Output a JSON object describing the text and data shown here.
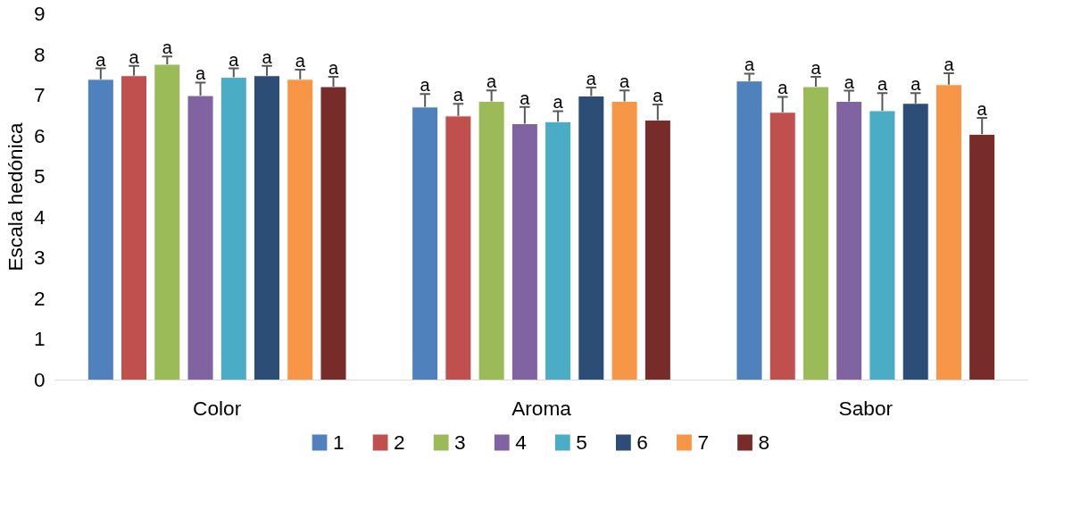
{
  "chart_data": {
    "type": "bar",
    "ylabel": "Escala hedónica",
    "categories": [
      "Color",
      "Aroma",
      "Sabor"
    ],
    "ylim": [
      0,
      9
    ],
    "yticks": [
      0,
      1,
      2,
      3,
      4,
      5,
      6,
      7,
      8,
      9
    ],
    "grid": false,
    "legend": "bottom",
    "series": [
      {
        "name": "1",
        "color": "#4f81bd",
        "values": [
          7.39,
          6.71,
          7.35
        ],
        "errors": [
          [
            7.39,
            7.66
          ],
          [
            6.71,
            7.03
          ],
          [
            7.35,
            7.53
          ]
        ],
        "value_labels": [
          "a",
          "a",
          "a"
        ]
      },
      {
        "name": "2",
        "color": "#c0504d",
        "values": [
          7.48,
          6.49,
          6.58
        ],
        "errors": [
          [
            7.48,
            7.72
          ],
          [
            6.49,
            6.79
          ],
          [
            6.58,
            6.96
          ]
        ],
        "value_labels": [
          "a",
          "a",
          "a"
        ]
      },
      {
        "name": "3",
        "color": "#9bbb59",
        "values": [
          7.76,
          6.85,
          7.21
        ],
        "errors": [
          [
            7.76,
            7.95
          ],
          [
            6.85,
            7.12
          ],
          [
            7.21,
            7.45
          ]
        ],
        "value_labels": [
          "a",
          "a",
          "a"
        ]
      },
      {
        "name": "4",
        "color": "#8064a2",
        "values": [
          6.99,
          6.3,
          6.85
        ],
        "errors": [
          [
            6.99,
            7.31
          ],
          [
            6.3,
            6.71
          ],
          [
            6.85,
            7.11
          ]
        ],
        "value_labels": [
          "a",
          "a",
          "a"
        ]
      },
      {
        "name": "5",
        "color": "#4bacc6",
        "values": [
          7.44,
          6.35,
          6.62
        ],
        "errors": [
          [
            7.44,
            7.66
          ],
          [
            6.35,
            6.61
          ],
          [
            6.62,
            7.05
          ]
        ],
        "value_labels": [
          "a",
          "a",
          "a"
        ]
      },
      {
        "name": "6",
        "color": "#2c4d75",
        "values": [
          7.48,
          6.98,
          6.8
        ],
        "errors": [
          [
            7.48,
            7.72
          ],
          [
            6.98,
            7.19
          ],
          [
            6.8,
            7.05
          ]
        ],
        "value_labels": [
          "a",
          "a",
          "a"
        ]
      },
      {
        "name": "7",
        "color": "#f79646",
        "values": [
          7.39,
          6.85,
          7.26
        ],
        "errors": [
          [
            7.39,
            7.63
          ],
          [
            6.85,
            7.12
          ],
          [
            7.26,
            7.54
          ]
        ],
        "value_labels": [
          "a",
          "a",
          "a"
        ]
      },
      {
        "name": "8",
        "color": "#772c2a",
        "values": [
          7.21,
          6.39,
          6.04
        ],
        "errors": [
          [
            7.21,
            7.45
          ],
          [
            6.39,
            6.77
          ],
          [
            6.04,
            6.44
          ]
        ],
        "value_labels": [
          "a",
          "a",
          "a"
        ]
      }
    ]
  }
}
